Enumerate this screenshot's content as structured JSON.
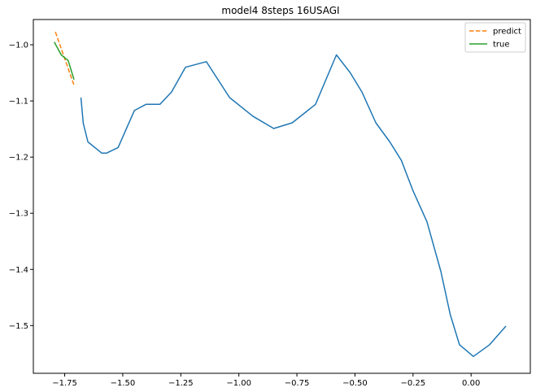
{
  "chart_data": {
    "type": "line",
    "title": "model4 8steps 16USAGI",
    "xlabel": "",
    "ylabel": "",
    "xlim": [
      -1.885,
      0.255
    ],
    "ylim": [
      -1.585,
      -0.955
    ],
    "xticks": [
      -1.75,
      -1.5,
      -1.25,
      -1.0,
      -0.75,
      -0.5,
      -0.25,
      0.0
    ],
    "xtick_labels": [
      "−1.75",
      "−1.50",
      "−1.25",
      "−1.00",
      "−0.75",
      "−0.50",
      "−0.25",
      "0.00"
    ],
    "yticks": [
      -1.0,
      -1.1,
      -1.2,
      -1.3,
      -1.4,
      -1.5
    ],
    "ytick_labels": [
      "−1.0",
      "−1.1",
      "−1.2",
      "−1.3",
      "−1.4",
      "−1.5"
    ],
    "grid": false,
    "legend_position": "upper right",
    "series": [
      {
        "name": "",
        "color": "#1f77b4",
        "dash": "solid",
        "x": [
          -1.68,
          -1.67,
          -1.65,
          -1.59,
          -1.57,
          -1.52,
          -1.45,
          -1.4,
          -1.34,
          -1.29,
          -1.23,
          -1.14,
          -1.04,
          -0.94,
          -0.85,
          -0.77,
          -0.67,
          -0.58,
          -0.52,
          -0.47,
          -0.41,
          -0.35,
          -0.3,
          -0.25,
          -0.19,
          -0.13,
          -0.09,
          -0.05,
          0.01,
          0.08,
          0.15
        ],
        "y": [
          -1.094,
          -1.14,
          -1.173,
          -1.193,
          -1.193,
          -1.183,
          -1.117,
          -1.106,
          -1.106,
          -1.084,
          -1.04,
          -1.03,
          -1.094,
          -1.127,
          -1.149,
          -1.139,
          -1.106,
          -1.018,
          -1.05,
          -1.084,
          -1.139,
          -1.173,
          -1.206,
          -1.26,
          -1.315,
          -1.404,
          -1.48,
          -1.534,
          -1.555,
          -1.534,
          -1.501
        ]
      },
      {
        "name": "predict",
        "color": "#ff7f0e",
        "dash": "dashed",
        "x": [
          -1.79,
          -1.71
        ],
        "y": [
          -0.977,
          -1.072
        ]
      },
      {
        "name": "true",
        "color": "#2ca02c",
        "dash": "solid",
        "x": [
          -1.795,
          -1.765,
          -1.735,
          -1.71
        ],
        "y": [
          -0.995,
          -1.018,
          -1.028,
          -1.062
        ]
      }
    ]
  }
}
